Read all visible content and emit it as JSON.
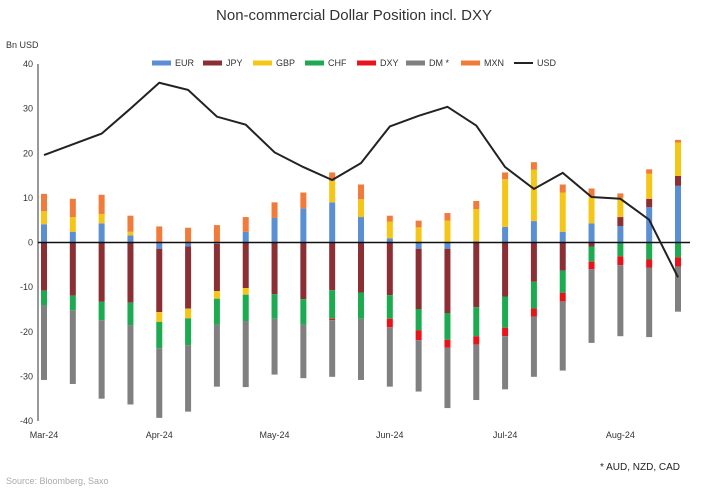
{
  "chart_data": {
    "type": "bar",
    "stacked": true,
    "title": "Non-commercial Dollar Position incl. DXY",
    "ylabel": "Bn USD",
    "ylim": [
      -40,
      40
    ],
    "yticks": [
      40,
      30,
      20,
      10,
      0,
      -10,
      -20,
      -30,
      -40
    ],
    "grid": false,
    "legend_position": "top",
    "month_labels": [
      {
        "label": "Mar-24",
        "index": 0
      },
      {
        "label": "Apr-24",
        "index": 4
      },
      {
        "label": "May-24",
        "index": 8
      },
      {
        "label": "Jun-24",
        "index": 12
      },
      {
        "label": "Jul-24",
        "index": 16
      },
      {
        "label": "Aug-24",
        "index": 20
      }
    ],
    "series": [
      {
        "name": "EUR",
        "color": "#5B8FD4",
        "values": [
          4.1,
          2.4,
          4.3,
          1.6,
          -1.4,
          -0.9,
          -0.3,
          2.4,
          5.5,
          7.6,
          9.0,
          5.7,
          0.9,
          -1.4,
          -1.4,
          0.3,
          3.5,
          4.8,
          2.4,
          4.3,
          3.7,
          7.9,
          12.7
        ]
      },
      {
        "name": "JPY",
        "color": "#8B2F35",
        "values": [
          -10.8,
          -11.9,
          -13.3,
          -13.5,
          -14.2,
          -13.9,
          -10.6,
          -10.2,
          -11.6,
          -12.7,
          -10.7,
          -11.2,
          -11.8,
          -13.5,
          -14.4,
          -14.5,
          -12.1,
          -8.8,
          -6.3,
          -0.9,
          2.0,
          1.9,
          2.2
        ]
      },
      {
        "name": "GBP",
        "color": "#F5C518",
        "values": [
          2.9,
          3.3,
          2.1,
          0.8,
          -2.2,
          -2.2,
          -1.7,
          -1.5,
          0,
          0,
          4.8,
          4.0,
          3.8,
          3.4,
          4.9,
          7.2,
          10.7,
          11.5,
          8.8,
          6.1,
          4.3,
          5.6,
          7.5
        ]
      },
      {
        "name": "CHF",
        "color": "#1DAA50",
        "values": [
          -3.3,
          -3.3,
          -4.1,
          -5.0,
          -5.9,
          -6.0,
          -5.8,
          -5.9,
          -5.5,
          -5.7,
          -6.4,
          -5.9,
          -5.3,
          -4.8,
          -6.0,
          -6.5,
          -7.0,
          -6.0,
          -5.0,
          -3.4,
          -3.1,
          -3.8,
          -3.3
        ]
      },
      {
        "name": "DXY",
        "color": "#E8141B",
        "values": [
          0,
          0,
          0,
          0,
          0,
          0,
          0,
          0,
          0,
          0,
          -0.3,
          0,
          -1.9,
          -2.2,
          -1.8,
          -1.9,
          -1.9,
          -1.8,
          -1.9,
          -1.7,
          -2.0,
          -1.8,
          -2.1
        ]
      },
      {
        "name": "DM *",
        "color": "#808080",
        "values": [
          -16.7,
          -16.5,
          -17.6,
          -17.8,
          -15.6,
          -14.9,
          -13.9,
          -14.8,
          -12.5,
          -12.0,
          -12.7,
          -13.7,
          -13.3,
          -11.5,
          -13.5,
          -12.4,
          -11.9,
          -13.5,
          -15.5,
          -16.5,
          -15.9,
          -15.6,
          -10.1
        ]
      },
      {
        "name": "MXN",
        "color": "#F07B3A",
        "values": [
          3.9,
          4.1,
          4.3,
          3.6,
          3.6,
          3.3,
          3.9,
          3.3,
          3.5,
          3.6,
          1.9,
          3.3,
          1.3,
          1.5,
          1.7,
          1.8,
          1.5,
          1.7,
          1.8,
          1.7,
          1.0,
          1.0,
          0.6
        ]
      }
    ],
    "line_series": {
      "name": "USD",
      "color": "#222222",
      "values": [
        19.6,
        22.0,
        24.4,
        30.0,
        35.8,
        34.2,
        28.2,
        26.4,
        20.2,
        16.9,
        14.0,
        17.8,
        26.0,
        28.4,
        30.4,
        26.2,
        16.9,
        12.0,
        15.6,
        10.2,
        9.8,
        5.1,
        -7.8
      ]
    }
  },
  "source": "Source: Bloomberg, Saxo",
  "footnote": "* AUD, NZD, CAD"
}
